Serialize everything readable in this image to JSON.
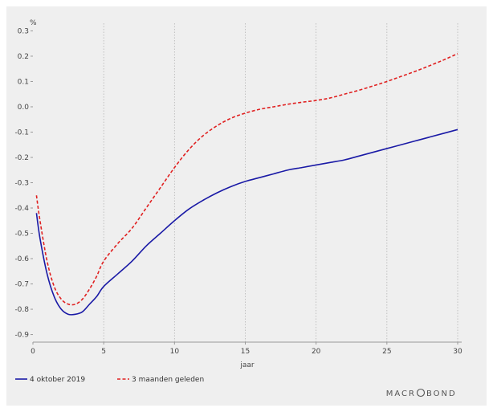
{
  "chart_data": {
    "type": "line",
    "title": "",
    "xlabel": "jaar",
    "ylabel": "%",
    "xlim": [
      0,
      30
    ],
    "ylim": [
      -0.93,
      0.33
    ],
    "x_ticks": [
      0,
      5,
      10,
      15,
      20,
      25,
      30
    ],
    "y_ticks": [
      0.3,
      0.2,
      0.1,
      0.0,
      -0.1,
      -0.2,
      -0.3,
      -0.4,
      -0.5,
      -0.6,
      -0.7,
      -0.8,
      -0.9
    ],
    "y_tick_labels": [
      "0.3",
      "0.2",
      "0.1",
      "0.0",
      "-0.1",
      "-0.2",
      "-0.3",
      "-0.4",
      "-0.5",
      "-0.6",
      "-0.7",
      "-0.8",
      "-0.9"
    ],
    "grid": "vertical dotted",
    "legend_position": "bottom-left",
    "series": [
      {
        "name": "4 oktober 2019",
        "color": "#1a1aa6",
        "style": "solid",
        "x": [
          0.25,
          0.5,
          1,
          1.5,
          2,
          2.5,
          3,
          3.5,
          4,
          4.5,
          5,
          6,
          7,
          8,
          9,
          10,
          11,
          12,
          13,
          14,
          15,
          16,
          17,
          18,
          19,
          20,
          21,
          22,
          23,
          24,
          25,
          26,
          27,
          28,
          29,
          30
        ],
        "values": [
          -0.42,
          -0.52,
          -0.66,
          -0.75,
          -0.8,
          -0.82,
          -0.82,
          -0.81,
          -0.78,
          -0.75,
          -0.71,
          -0.66,
          -0.61,
          -0.55,
          -0.5,
          -0.45,
          -0.405,
          -0.37,
          -0.34,
          -0.315,
          -0.295,
          -0.28,
          -0.265,
          -0.25,
          -0.24,
          -0.23,
          -0.22,
          -0.21,
          -0.195,
          -0.18,
          -0.165,
          -0.15,
          -0.135,
          -0.12,
          -0.105,
          -0.09
        ]
      },
      {
        "name": "3 maanden geleden",
        "color": "#e02020",
        "style": "dashed",
        "x": [
          0.25,
          0.5,
          1,
          1.5,
          2,
          2.5,
          3,
          3.5,
          4,
          4.5,
          5,
          6,
          7,
          8,
          9,
          10,
          11,
          12,
          13,
          14,
          15,
          16,
          17,
          18,
          19,
          20,
          21,
          22,
          23,
          24,
          25,
          26,
          27,
          28,
          29,
          30
        ],
        "values": [
          -0.35,
          -0.45,
          -0.61,
          -0.71,
          -0.76,
          -0.78,
          -0.78,
          -0.76,
          -0.72,
          -0.67,
          -0.61,
          -0.54,
          -0.48,
          -0.4,
          -0.32,
          -0.24,
          -0.17,
          -0.115,
          -0.075,
          -0.045,
          -0.025,
          -0.01,
          0.0,
          0.01,
          0.018,
          0.025,
          0.035,
          0.05,
          0.065,
          0.082,
          0.1,
          0.12,
          0.14,
          0.162,
          0.185,
          0.21
        ]
      }
    ]
  },
  "brand": {
    "prefix": "MACR",
    "suffix": "BOND"
  }
}
